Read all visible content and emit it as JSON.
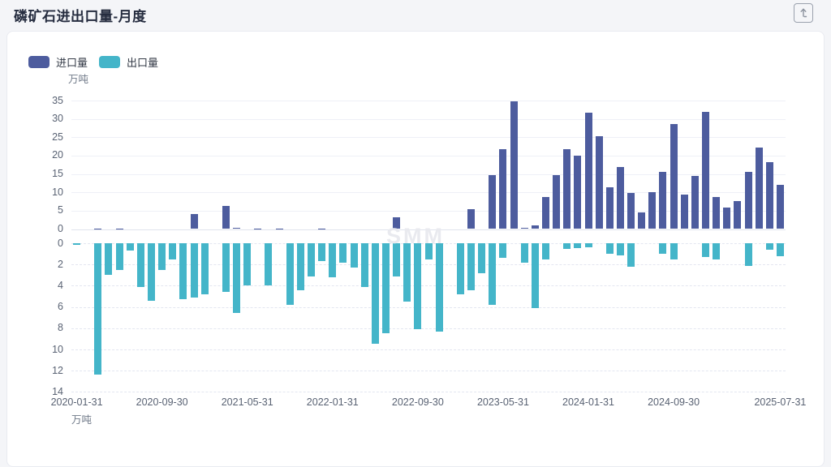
{
  "page": {
    "title": "磷矿石进出口量-月度"
  },
  "header": {
    "export_icon": "arrow-up-from-tray"
  },
  "legend": [
    {
      "key": "imports",
      "label": "进口量",
      "color": "#4d5c9e"
    },
    {
      "key": "exports",
      "label": "出口量",
      "color": "#44b5c9"
    }
  ],
  "chart_data": {
    "type": "bar",
    "title": "磷矿石进出口量-月度",
    "unit_label_top": "万吨",
    "unit_label_bottom": "万吨",
    "watermark": "SMM",
    "grid": "on",
    "legend_position": "top-left",
    "upper_axis": {
      "label": "万吨",
      "min": 0,
      "max": 35,
      "ticks": [
        35,
        30,
        25,
        20,
        15,
        10,
        5,
        0
      ]
    },
    "lower_axis": {
      "label": "万吨",
      "min": 0,
      "max": 14,
      "inverted": true,
      "ticks": [
        0,
        2,
        4,
        6,
        8,
        10,
        12,
        14
      ]
    },
    "x_ticks": [
      {
        "index": 0,
        "label": "2020-01-31"
      },
      {
        "index": 8,
        "label": "2020-09-30"
      },
      {
        "index": 16,
        "label": "2021-05-31"
      },
      {
        "index": 24,
        "label": "2022-01-31"
      },
      {
        "index": 32,
        "label": "2022-09-30"
      },
      {
        "index": 40,
        "label": "2023-05-31"
      },
      {
        "index": 48,
        "label": "2024-01-31"
      },
      {
        "index": 56,
        "label": "2024-09-30"
      },
      {
        "index": 66,
        "label": "2025-07-31"
      }
    ],
    "categories": [
      "2020-01-31",
      "2020-02-29",
      "2020-03-31",
      "2020-04-30",
      "2020-05-31",
      "2020-06-30",
      "2020-07-31",
      "2020-08-31",
      "2020-09-30",
      "2020-10-31",
      "2020-11-30",
      "2020-12-31",
      "2021-01-31",
      "2021-02-28",
      "2021-03-31",
      "2021-04-30",
      "2021-05-31",
      "2021-06-30",
      "2021-07-31",
      "2021-08-31",
      "2021-09-30",
      "2021-10-31",
      "2021-11-30",
      "2021-12-31",
      "2022-01-31",
      "2022-02-28",
      "2022-03-31",
      "2022-04-30",
      "2022-05-31",
      "2022-06-30",
      "2022-07-31",
      "2022-08-31",
      "2022-09-30",
      "2022-10-31",
      "2022-11-30",
      "2022-12-31",
      "2023-01-31",
      "2023-02-28",
      "2023-03-31",
      "2023-04-30",
      "2023-05-31",
      "2023-06-30",
      "2023-07-31",
      "2023-08-31",
      "2023-09-30",
      "2023-10-31",
      "2023-11-30",
      "2023-12-31",
      "2024-01-31",
      "2024-02-29",
      "2024-03-31",
      "2024-04-30",
      "2024-05-31",
      "2024-06-30",
      "2024-07-31",
      "2024-08-31",
      "2024-09-30",
      "2024-10-31",
      "2024-11-30",
      "2024-12-31",
      "2025-01-31",
      "2025-02-28",
      "2025-03-31",
      "2025-04-30",
      "2025-05-31",
      "2025-06-30",
      "2025-07-31"
    ],
    "series": [
      {
        "name": "进口量",
        "direction": "up",
        "color": "#4d5c9e",
        "values": [
          0,
          0,
          0.2,
          0,
          0.15,
          0,
          0,
          0,
          0,
          0,
          0,
          4.0,
          0,
          0,
          6.3,
          0.3,
          0,
          0.2,
          0,
          0.1,
          0,
          0,
          0,
          0.1,
          0,
          0,
          0,
          0,
          0,
          0,
          3.3,
          0,
          0,
          0,
          0,
          0,
          0,
          5.5,
          0,
          14.6,
          21.7,
          34.8,
          0.4,
          0.9,
          8.8,
          14.6,
          21.8,
          19.9,
          31.7,
          25.2,
          11.4,
          17.0,
          9.9,
          4.5,
          10.1,
          15.5,
          28.5,
          9.3,
          14.5,
          31.8,
          8.8,
          5.8,
          7.7,
          15.6,
          22.2,
          18.3,
          12.1
        ]
      },
      {
        "name": "出口量",
        "direction": "down",
        "color": "#44b5c9",
        "values": [
          0.15,
          0,
          12.4,
          3.0,
          2.5,
          0.7,
          4.1,
          5.4,
          2.5,
          1.5,
          5.3,
          5.1,
          4.8,
          0,
          4.6,
          6.6,
          4.0,
          0,
          4.0,
          0,
          5.8,
          4.4,
          3.1,
          1.7,
          3.2,
          1.8,
          2.3,
          4.1,
          9.5,
          8.5,
          3.1,
          5.5,
          8.1,
          1.5,
          8.3,
          0,
          4.8,
          4.4,
          2.8,
          5.8,
          1.4,
          0,
          1.8,
          6.1,
          1.5,
          0,
          0.5,
          0.45,
          0.4,
          0,
          1.0,
          1.15,
          2.2,
          0,
          0,
          1.0,
          1.5,
          0,
          0,
          1.3,
          1.5,
          0,
          0,
          2.1,
          0,
          0.6,
          1.2
        ]
      }
    ]
  }
}
